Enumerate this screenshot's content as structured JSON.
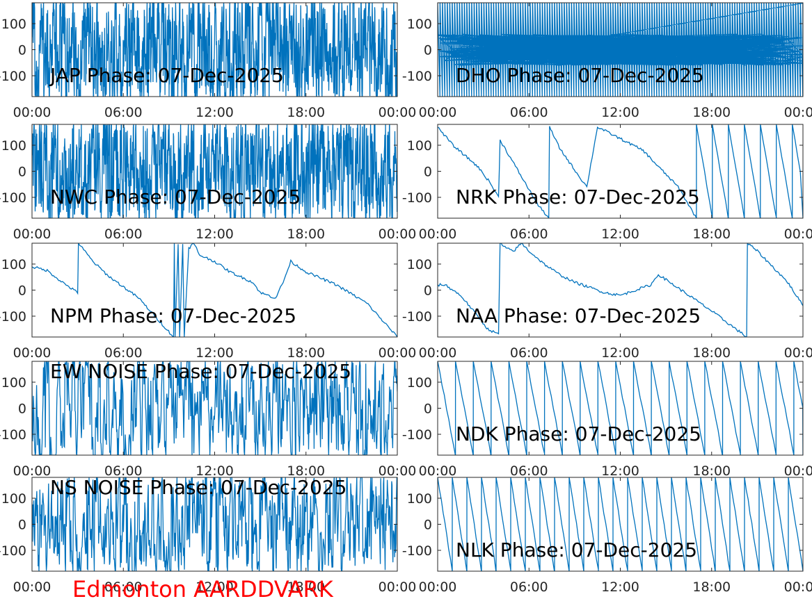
{
  "figure_title": "Edmonton AARDDVARK",
  "colors": {
    "line": "#0072bd",
    "title": "#ff0000",
    "axes": "#262626",
    "background": "#ffffff"
  },
  "chart_data": [
    {
      "type": "line",
      "title": "JAP Phase: 07-Dec-2025",
      "x_ticks": [
        "00:00",
        "06:00",
        "12:00",
        "18:00",
        "00:00"
      ],
      "y_ticks": [
        "100",
        "0",
        "-100"
      ],
      "ylim": [
        -180,
        180
      ],
      "xlim_hours": [
        0,
        24
      ],
      "pattern": "noise",
      "density": 420,
      "title_position": "bottom-left"
    },
    {
      "type": "line",
      "title": "DHO Phase: 07-Dec-2025",
      "x_ticks": [
        "00:00",
        "06:00",
        "12:00",
        "18:00",
        "00:00"
      ],
      "y_ticks": [
        "100",
        "0",
        "-100"
      ],
      "ylim": [
        -180,
        180
      ],
      "xlim_hours": [
        0,
        24
      ],
      "pattern": "fast_wrap",
      "cycles": 150,
      "title_position": "bottom-left"
    },
    {
      "type": "line",
      "title": "NWC Phase: 07-Dec-2025",
      "x_ticks": [
        "00:00",
        "06:00",
        "12:00",
        "18:00",
        "00:00"
      ],
      "y_ticks": [
        "100",
        "0",
        "-100"
      ],
      "ylim": [
        -180,
        180
      ],
      "xlim_hours": [
        0,
        24
      ],
      "pattern": "noise",
      "density": 380,
      "title_position": "bottom-left"
    },
    {
      "type": "line",
      "title": "NRK Phase: 07-Dec-2025",
      "x_ticks": [
        "00:00",
        "06:00",
        "12:00",
        "18:00",
        "00:00"
      ],
      "y_ticks": [
        "100",
        "0",
        "-100"
      ],
      "ylim": [
        -180,
        180
      ],
      "xlim_hours": [
        0,
        24
      ],
      "pattern": "path",
      "points": [
        [
          0,
          170
        ],
        [
          1,
          100
        ],
        [
          1.8,
          60
        ],
        [
          2.6,
          20
        ],
        [
          3.4,
          -40
        ],
        [
          4,
          -100
        ],
        [
          4.1,
          120
        ],
        [
          4.7,
          60
        ],
        [
          5.6,
          -30
        ],
        [
          6.6,
          -130
        ],
        [
          7.3,
          -178
        ],
        [
          7.35,
          170
        ],
        [
          8,
          90
        ],
        [
          9.3,
          -20
        ],
        [
          9.8,
          -60
        ],
        [
          10.5,
          170
        ],
        [
          12.5,
          110
        ],
        [
          13.5,
          80
        ],
        [
          14.3,
          30
        ],
        [
          15.8,
          -60
        ],
        [
          17,
          -180
        ]
      ],
      "sawtooth": {
        "start_hour": 17,
        "period_hours": 1.05,
        "start_phase": 180,
        "end_phase": -180
      },
      "title_position": "bottom-left"
    },
    {
      "type": "line",
      "title": "NPM Phase: 07-Dec-2025",
      "x_ticks": [
        "00:00",
        "06:00",
        "12:00",
        "18:00",
        "00:00"
      ],
      "y_ticks": [
        "100",
        "0",
        "-100"
      ],
      "ylim": [
        -180,
        180
      ],
      "xlim_hours": [
        0,
        24
      ],
      "pattern": "path",
      "points": [
        [
          0,
          90
        ],
        [
          1,
          75
        ],
        [
          2,
          30
        ],
        [
          3,
          -10
        ],
        [
          3.05,
          180
        ],
        [
          4,
          110
        ],
        [
          5,
          55
        ],
        [
          7,
          -30
        ],
        [
          9.3,
          -180
        ],
        [
          9.35,
          180
        ],
        [
          9.4,
          -180
        ],
        [
          9.6,
          180
        ],
        [
          9.7,
          -180
        ],
        [
          9.9,
          180
        ],
        [
          10,
          -180
        ],
        [
          10.3,
          160
        ],
        [
          10.6,
          180
        ],
        [
          10.8,
          160
        ],
        [
          11,
          135
        ],
        [
          12,
          110
        ],
        [
          13,
          70
        ],
        [
          14.5,
          30
        ],
        [
          15,
          -10
        ],
        [
          16,
          -30
        ],
        [
          16.5,
          30
        ],
        [
          17,
          110
        ],
        [
          18,
          70
        ],
        [
          20,
          20
        ],
        [
          22,
          -50
        ],
        [
          24,
          -180
        ]
      ],
      "title_position": "bottom-left"
    },
    {
      "type": "line",
      "title": "NAA Phase: 07-Dec-2025",
      "x_ticks": [
        "00:00",
        "06:00",
        "12:00",
        "18:00",
        "00:00"
      ],
      "y_ticks": [
        "100",
        "0",
        "-100"
      ],
      "ylim": [
        -180,
        180
      ],
      "xlim_hours": [
        0,
        24
      ],
      "pattern": "path",
      "points": [
        [
          0,
          20
        ],
        [
          0.5,
          20
        ],
        [
          1.5,
          -20
        ],
        [
          2.5,
          -90
        ],
        [
          3.3,
          -150
        ],
        [
          4,
          -170
        ],
        [
          4.1,
          180
        ],
        [
          4.5,
          160
        ],
        [
          5,
          150
        ],
        [
          5.5,
          180
        ],
        [
          6,
          150
        ],
        [
          7,
          100
        ],
        [
          8,
          60
        ],
        [
          9,
          30
        ],
        [
          10,
          10
        ],
        [
          11,
          -10
        ],
        [
          12,
          -20
        ],
        [
          13,
          0
        ],
        [
          14,
          20
        ],
        [
          14.5,
          60
        ],
        [
          15,
          40
        ],
        [
          16,
          0
        ],
        [
          18,
          -80
        ],
        [
          20.3,
          -180
        ],
        [
          20.35,
          180
        ],
        [
          21,
          150
        ],
        [
          22,
          90
        ],
        [
          23,
          30
        ],
        [
          24,
          -60
        ]
      ],
      "title_position": "bottom-left"
    },
    {
      "type": "line",
      "title": "EW NOISE Phase: 07-Dec-2025",
      "x_ticks": [
        "00:00",
        "06:00",
        "12:00",
        "18:00",
        "00:00"
      ],
      "y_ticks": [
        "100",
        "0",
        "-100"
      ],
      "ylim": [
        -180,
        180
      ],
      "xlim_hours": [
        0,
        24
      ],
      "pattern": "noise",
      "density": 200,
      "title_position": "top-left"
    },
    {
      "type": "line",
      "title": "NDK Phase: 07-Dec-2025",
      "x_ticks": [
        "00:00",
        "06:00",
        "12:00",
        "18:00",
        "00:00"
      ],
      "y_ticks": [
        "100",
        "0",
        "-100"
      ],
      "ylim": [
        -180,
        180
      ],
      "xlim_hours": [
        0,
        24
      ],
      "pattern": "sawtooth",
      "period_hours": 1.17,
      "title_position": "bottom-left"
    },
    {
      "type": "line",
      "title": "NS NOISE Phase: 07-Dec-2025",
      "x_ticks": [
        "00:00",
        "06:00",
        "12:00",
        "18:00",
        "00:00"
      ],
      "y_ticks": [
        "100",
        "0",
        "-100"
      ],
      "ylim": [
        -180,
        180
      ],
      "xlim_hours": [
        0,
        24
      ],
      "pattern": "noise",
      "density": 210,
      "title_position": "top-left"
    },
    {
      "type": "line",
      "title": "NLK Phase: 07-Dec-2025",
      "x_ticks": [
        "00:00",
        "06:00",
        "12:00",
        "18:00",
        "00:00"
      ],
      "y_ticks": [
        "100",
        "0",
        "-100"
      ],
      "ylim": [
        -180,
        180
      ],
      "xlim_hours": [
        0,
        24
      ],
      "pattern": "sawtooth",
      "period_hours": 0.96,
      "title_position": "bottom-left"
    }
  ]
}
